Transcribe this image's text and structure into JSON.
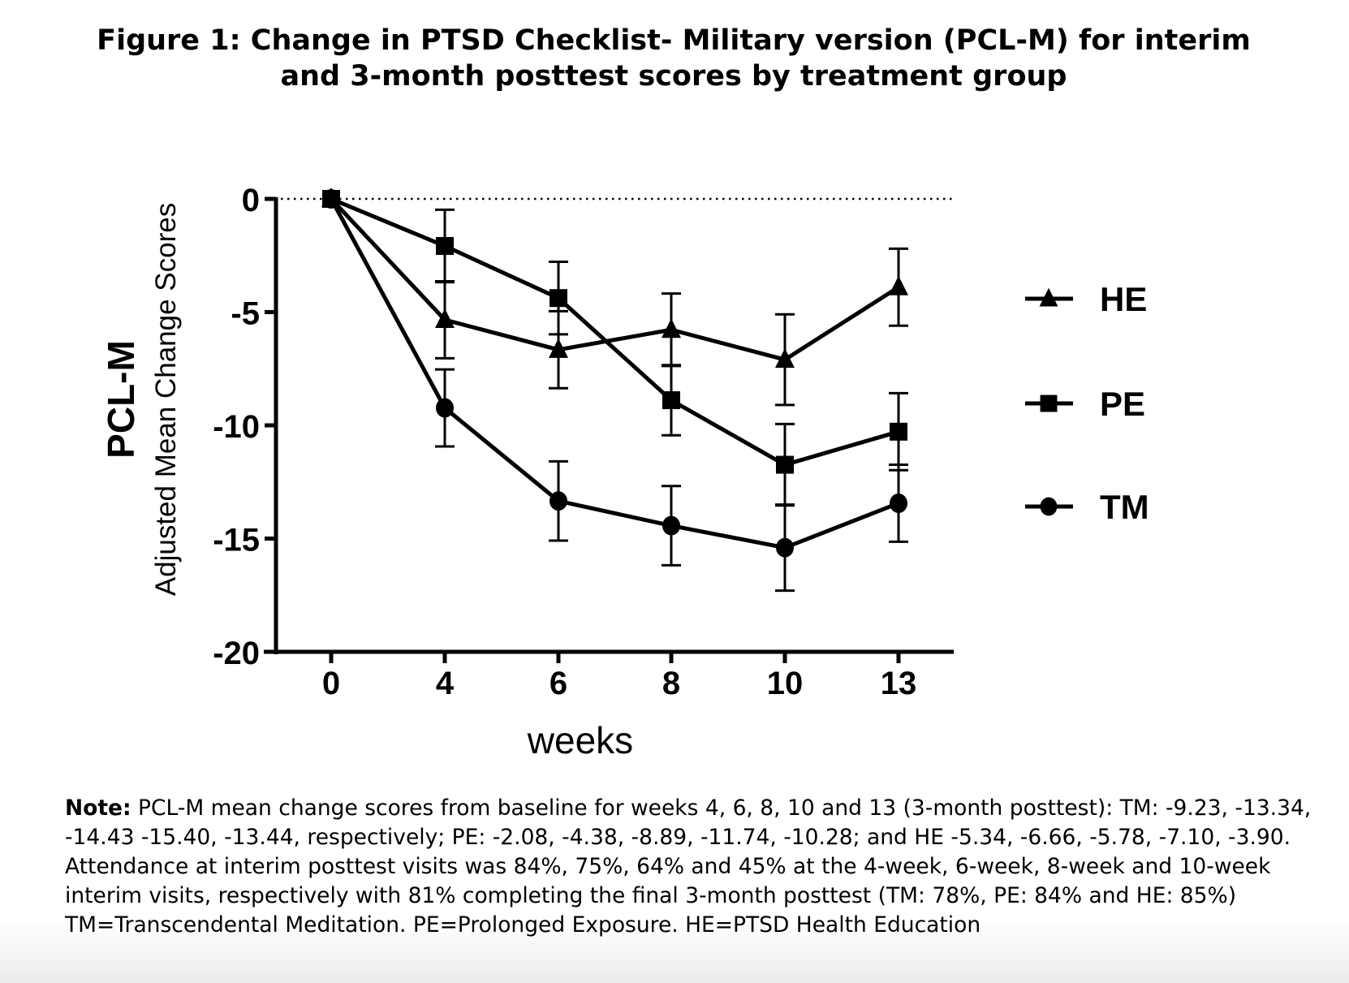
{
  "figure": {
    "title_line1": "Figure 1: Change in PTSD Checklist- Military version (PCL-M) for interim",
    "title_line2": "and 3-month posttest scores by treatment group"
  },
  "note": {
    "label": "Note:",
    "text": " PCL-M mean change scores from baseline for weeks 4, 6, 8, 10 and 13 (3-month posttest): TM: -9.23, -13.34, -14.43 -15.40, -13.44, respectively; PE: -2.08, -4.38, -8.89, -11.74, -10.28; and HE -5.34, -6.66, -5.78, -7.10, -3.90. Attendance at interim posttest visits was 84%, 75%, 64% and 45% at the 4-week, 6-week, 8-week and 10-week interim visits, respectively with 81% completing the final 3-month posttest (TM: 78%, PE: 84% and HE: 85%)  TM=Transcendental Meditation. PE=Prolonged Exposure. HE=PTSD Health Education"
  },
  "chart_data": {
    "type": "line",
    "title": "",
    "xlabel": "weeks",
    "ylabel_main": "PCL-M",
    "ylabel_sub": "Adjusted Mean Change Scores",
    "x": [
      0,
      4,
      6,
      8,
      10,
      13
    ],
    "x_tick_labels": [
      "0",
      "4",
      "6",
      "8",
      "10",
      "13"
    ],
    "ylim": [
      -20,
      0
    ],
    "y_ticks": [
      0,
      -5,
      -10,
      -15,
      -20
    ],
    "y_tick_labels": [
      "0",
      "-5",
      "-10",
      "-15",
      "-20"
    ],
    "reference_line": {
      "y": 0,
      "style": "dotted"
    },
    "grid": false,
    "legend_position": "right",
    "series": [
      {
        "name": "HE",
        "marker": "triangle",
        "values": [
          0,
          -5.34,
          -6.66,
          -5.78,
          -7.1,
          -3.9
        ],
        "error": [
          0,
          1.7,
          1.7,
          1.6,
          2.0,
          1.7
        ]
      },
      {
        "name": "PE",
        "marker": "square",
        "values": [
          0,
          -2.08,
          -4.38,
          -8.89,
          -11.74,
          -10.28
        ],
        "error": [
          0,
          1.6,
          1.6,
          1.55,
          1.8,
          1.7
        ]
      },
      {
        "name": "TM",
        "marker": "circle",
        "values": [
          0,
          -9.23,
          -13.34,
          -14.43,
          -15.4,
          -13.44
        ],
        "error": [
          0,
          1.7,
          1.75,
          1.75,
          1.9,
          1.7
        ]
      }
    ],
    "colors": {
      "line": "#000000",
      "background": "#ffffff"
    }
  }
}
